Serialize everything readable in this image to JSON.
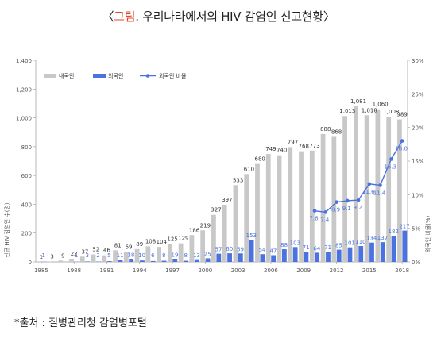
{
  "title": {
    "open": "〈",
    "keyword": "그림",
    "rest": ". 우리나라에서의 HIV 감염인 신고현황〉"
  },
  "source": "*출처 : 질병관리청 감염병포털",
  "chart_data": {
    "type": "bar",
    "years": [
      1985,
      1986,
      1987,
      1988,
      1989,
      1990,
      1991,
      1992,
      1993,
      1994,
      1995,
      1996,
      1997,
      1998,
      1999,
      2000,
      2001,
      2002,
      2003,
      2004,
      2005,
      2006,
      2007,
      2008,
      2009,
      2010,
      2011,
      2012,
      2013,
      2014,
      2015,
      2016,
      2017,
      2018
    ],
    "x_tick_labels": [
      "1985",
      "1988",
      "1991",
      "1994",
      "1997",
      "2000",
      "2003",
      "2006",
      "2009",
      "2012",
      "2015",
      "2018"
    ],
    "left_axis": {
      "label": "신규 HIV 감염인 수(명)",
      "min": 0,
      "max": 1400,
      "ticks": [
        "0",
        "200",
        "400",
        "600",
        "800",
        "1,000",
        "1,200",
        "1,400"
      ],
      "tick_values": [
        0,
        200,
        400,
        600,
        800,
        1000,
        1200,
        1400
      ]
    },
    "right_axis": {
      "label": "외국인 비율(%)",
      "min": 0,
      "max": 30,
      "ticks": [
        "0%",
        "5%",
        "10%",
        "15%",
        "20%",
        "25%",
        "30%"
      ],
      "tick_values": [
        0,
        5,
        10,
        15,
        20,
        25,
        30
      ]
    },
    "series": [
      {
        "name": "내국인",
        "color": "#c8c8c8",
        "values": [
          1,
          3,
          9,
          22,
          37,
          52,
          46,
          81,
          69,
          89,
          108,
          104,
          125,
          129,
          186,
          219,
          327,
          397,
          533,
          610,
          680,
          749,
          740,
          797,
          768,
          773,
          888,
          868,
          1013,
          1081,
          1018,
          1060,
          1008,
          989
        ],
        "labels": [
          "1",
          "3",
          "9",
          "22",
          "37",
          "52",
          "46",
          "81",
          "69",
          "89",
          "108",
          "104",
          "125",
          "129",
          "186",
          "219",
          "327",
          "397",
          "533",
          "610",
          "680",
          "749",
          "740",
          "797",
          "768",
          "773",
          "888",
          "868",
          "1,013",
          "1,081",
          "1,018",
          "1,060",
          "1,008",
          "989"
        ]
      },
      {
        "name": "외국인",
        "color": "#4a72e0",
        "values": [
          1,
          0,
          0,
          1,
          3,
          2,
          5,
          11,
          18,
          10,
          6,
          8,
          19,
          8,
          13,
          25,
          57,
          60,
          59,
          153,
          54,
          47,
          88,
          103,
          71,
          64,
          71,
          85,
          101,
          110,
          134,
          137,
          182,
          217
        ],
        "labels": [
          "1",
          "",
          "",
          "1",
          "3",
          "2",
          "5",
          "11",
          "18",
          "10",
          "6",
          "8",
          "19",
          "8",
          "13",
          "25",
          "57",
          "60",
          "59",
          "153",
          "54",
          "47",
          "88",
          "103",
          "71",
          "64",
          "71",
          "85",
          "101",
          "110",
          "134",
          "137",
          "182",
          "217"
        ]
      },
      {
        "name": "외국인 비율",
        "color": "#4a72e0",
        "x": [
          2010,
          2011,
          2012,
          2013,
          2014,
          2015,
          2016,
          2017,
          2018
        ],
        "values": [
          7.6,
          7.4,
          8.9,
          9.1,
          9.2,
          11.6,
          11.4,
          15.3,
          18.0
        ],
        "labels": [
          "7.6",
          "7.4",
          "8.9",
          "9.1",
          "9.2",
          "11.6",
          "11.4",
          "15.3",
          "18.0"
        ]
      }
    ]
  }
}
